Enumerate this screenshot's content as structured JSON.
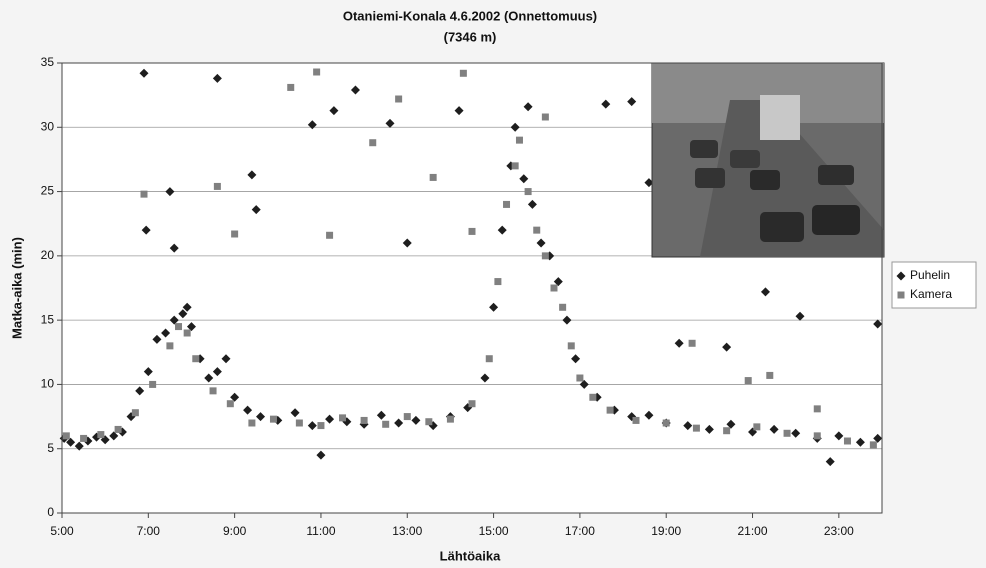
{
  "chart_data": {
    "type": "scatter",
    "title": "Otaniemi-Konala 4.6.2002 (Onnettomuus)",
    "subtitle": "(7346 m)",
    "x_label": "Lähtöaika",
    "y_label": "Matka-aika (min)",
    "xlim": [
      5,
      24
    ],
    "xticks": [
      {
        "value": 5,
        "label": "5:00"
      },
      {
        "value": 7,
        "label": "7:00"
      },
      {
        "value": 9,
        "label": "9:00"
      },
      {
        "value": 11,
        "label": "11:00"
      },
      {
        "value": 13,
        "label": "13:00"
      },
      {
        "value": 15,
        "label": "15:00"
      },
      {
        "value": 17,
        "label": "17:00"
      },
      {
        "value": 19,
        "label": "19:00"
      },
      {
        "value": 21,
        "label": "21:00"
      },
      {
        "value": 23,
        "label": "23:00"
      }
    ],
    "ylim": [
      0,
      35
    ],
    "yticks": [
      0,
      5,
      10,
      15,
      20,
      25,
      30,
      35
    ],
    "grid": true,
    "legend": "right",
    "series": [
      {
        "name": "Puhelin",
        "color": "#1e1e1e",
        "marker": "diamond",
        "x": [
          5.05,
          5.2,
          5.4,
          5.6,
          5.8,
          6.0,
          6.2,
          6.4,
          6.6,
          6.8,
          7.0,
          7.2,
          7.4,
          7.6,
          7.8,
          7.9,
          8.0,
          8.2,
          8.4,
          8.6,
          8.8,
          9.0,
          9.3,
          9.6,
          10.0,
          10.4,
          10.8,
          11.2,
          11.6,
          12.0,
          12.4,
          12.8,
          13.2,
          13.6,
          14.0,
          14.4,
          14.8,
          15.0,
          15.2,
          15.4,
          15.5,
          15.7,
          15.9,
          16.1,
          16.3,
          16.5,
          16.7,
          16.9,
          17.1,
          17.4,
          17.8,
          18.2,
          18.6,
          19.0,
          19.5,
          20.0,
          20.5,
          21.0,
          21.5,
          22.0,
          22.5,
          23.0,
          23.5,
          23.9,
          6.9,
          7.5,
          8.6,
          9.4,
          10.8,
          11.3,
          11.8,
          12.6,
          13.0,
          14.2,
          15.8,
          17.6,
          18.2,
          18.6,
          19.3,
          20.4,
          21.3,
          22.1,
          23.9,
          11.0,
          22.8,
          6.95,
          7.6,
          9.5
        ],
        "values": [
          5.8,
          5.5,
          5.2,
          5.6,
          5.9,
          5.7,
          6.0,
          6.3,
          7.5,
          9.5,
          11,
          13.5,
          14,
          15,
          15.5,
          16,
          14.5,
          12,
          10.5,
          11,
          12,
          9,
          8,
          7.5,
          7.2,
          7.8,
          6.8,
          7.3,
          7.1,
          6.9,
          7.6,
          7.0,
          7.2,
          6.8,
          7.5,
          8.2,
          10.5,
          16,
          22,
          27,
          30,
          26,
          24,
          21,
          20,
          18,
          15,
          12,
          10,
          9,
          8,
          7.5,
          7.6,
          7.0,
          6.8,
          6.5,
          6.9,
          6.3,
          6.5,
          6.2,
          5.8,
          6.0,
          5.5,
          5.8,
          34.2,
          25,
          33.8,
          26.3,
          30.2,
          31.3,
          32.9,
          30.3,
          21,
          31.3,
          31.6,
          31.8,
          32.0,
          25.7,
          13.2,
          12.9,
          17.2,
          15.3,
          14.7,
          4.5,
          4.0,
          22,
          20.6,
          23.6
        ]
      },
      {
        "name": "Kamera",
        "color": "#808080",
        "marker": "square",
        "x": [
          5.1,
          5.5,
          5.9,
          6.3,
          6.7,
          7.1,
          7.5,
          7.7,
          7.9,
          8.1,
          8.5,
          8.9,
          9.4,
          9.9,
          10.5,
          11.0,
          11.5,
          12.0,
          12.5,
          13.0,
          13.5,
          14.0,
          14.5,
          14.9,
          15.1,
          15.3,
          15.5,
          15.6,
          15.8,
          16.0,
          16.2,
          16.4,
          16.6,
          16.8,
          17.0,
          17.3,
          17.7,
          18.3,
          19.0,
          19.7,
          20.4,
          21.1,
          21.8,
          22.5,
          23.2,
          23.8,
          6.9,
          8.6,
          9.0,
          10.3,
          10.9,
          11.2,
          12.2,
          12.8,
          13.6,
          14.3,
          14.5,
          16.2,
          19.6,
          20.9,
          21.4,
          22.5
        ],
        "values": [
          6.0,
          5.8,
          6.1,
          6.5,
          7.8,
          10,
          13,
          14.5,
          14,
          12,
          9.5,
          8.5,
          7,
          7.3,
          7.0,
          6.8,
          7.4,
          7.2,
          6.9,
          7.5,
          7.1,
          7.3,
          8.5,
          12,
          18,
          24,
          27,
          29,
          25,
          22,
          20,
          17.5,
          16,
          13,
          10.5,
          9,
          8,
          7.2,
          7.0,
          6.6,
          6.4,
          6.7,
          6.2,
          6.0,
          5.6,
          5.3,
          24.8,
          25.4,
          21.7,
          33.1,
          34.3,
          21.6,
          28.8,
          32.2,
          26.1,
          34.2,
          21.9,
          30.8,
          13.2,
          10.3,
          10.7,
          8.1
        ]
      }
    ]
  }
}
